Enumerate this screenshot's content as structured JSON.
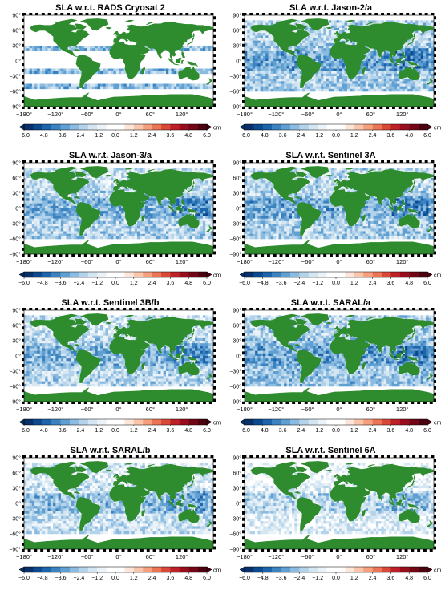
{
  "panels": [
    {
      "title": "SLA w.r.t. RADS Cryosat 2",
      "pattern": "cryosat"
    },
    {
      "title": "SLA w.r.t. Jason-2/a",
      "pattern": "full",
      "bias": 0.0
    },
    {
      "title": "SLA w.r.t. Jason-3/a",
      "pattern": "full",
      "bias": 0.2
    },
    {
      "title": "SLA w.r.t. Sentinel 3A",
      "pattern": "full",
      "bias": 0.1
    },
    {
      "title": "SLA w.r.t. Sentinel 3B/b",
      "pattern": "full",
      "bias": 0.3
    },
    {
      "title": "SLA w.r.t. SARAL/a",
      "pattern": "full",
      "bias": -0.1
    },
    {
      "title": "SLA w.r.t. SARAL/b",
      "pattern": "full",
      "bias": 0.6
    },
    {
      "title": "SLA w.r.t. Sentinel 6A",
      "pattern": "full",
      "bias": 1.2
    }
  ],
  "lat_ticks": [
    "90°",
    "60°",
    "30°",
    "0°",
    "−30°",
    "−60°",
    "−90°"
  ],
  "lon_ticks": [
    "−180°",
    "−120°",
    "−60°",
    "0°",
    "60°",
    "120°"
  ],
  "colorbar": {
    "ticks": [
      "−6.0",
      "−4.8",
      "−3.6",
      "−2.4",
      "−1.2",
      "0.0",
      "1.2",
      "2.4",
      "3.6",
      "4.8",
      "6.0"
    ],
    "unit": "cm",
    "range": [
      -6.0,
      6.0
    ],
    "colors": [
      "#08306b",
      "#0b4a8f",
      "#1c64ab",
      "#3a82c0",
      "#609fd2",
      "#8bbbe0",
      "#b3d3ea",
      "#d4e6f2",
      "#ebf3f9",
      "#ffffff",
      "#ffffff",
      "#fde6d9",
      "#f9c5ab",
      "#f69f7d",
      "#ec7555",
      "#da4837",
      "#bd2027",
      "#9a0d1d",
      "#730515",
      "#4d0010"
    ]
  },
  "colors": {
    "land": "#2e8b2e",
    "ocean_default": "#ffffff"
  }
}
